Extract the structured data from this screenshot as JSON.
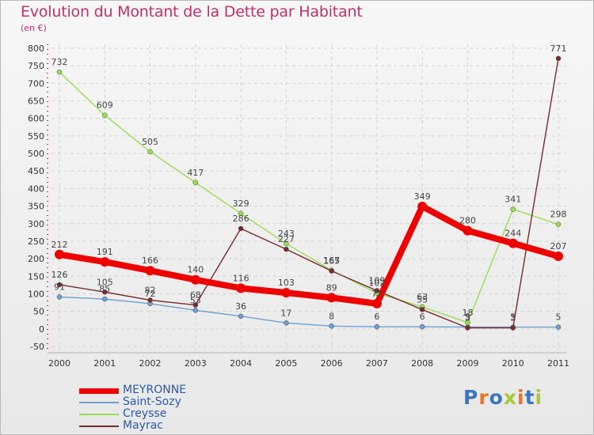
{
  "title": "Evolution du Montant de la Dette par Habitant",
  "subtitle": "(en €)",
  "logo": {
    "text": "Proxiti",
    "colors": [
      "#3a76c2",
      "#e8732b",
      "#3a76c2",
      "#a6c93a",
      "#e8732b",
      "#3a76c2",
      "#a6c93a"
    ]
  },
  "chart_data": {
    "type": "line",
    "categories": [
      "2000",
      "2001",
      "2002",
      "2003",
      "2004",
      "2005",
      "2006",
      "2007",
      "2008",
      "2009",
      "2010",
      "2011"
    ],
    "ylim": [
      -50,
      800
    ],
    "yticks": [
      -50,
      0,
      50,
      100,
      150,
      200,
      250,
      300,
      350,
      400,
      450,
      500,
      550,
      600,
      650,
      700,
      750,
      800
    ],
    "grid": true,
    "series": [
      {
        "name": "MEYRONNE",
        "color": "#ee0000",
        "values": [
          212,
          191,
          166,
          140,
          116,
          103,
          89,
          72,
          349,
          280,
          244,
          207
        ],
        "labels": [
          "212",
          "191",
          "166",
          "140",
          "116",
          "103",
          "89",
          "72",
          "349",
          "280",
          "244",
          "207"
        ]
      },
      {
        "name": "Saint-Sozy",
        "color": "#6f9fd0",
        "values": [
          91,
          85,
          72,
          53,
          36,
          17,
          8,
          6,
          6,
          5,
          5,
          5
        ],
        "labels": [
          "91",
          "85",
          "72",
          "53",
          "36",
          "17",
          "8",
          "6",
          "6",
          "5",
          "5",
          "5"
        ]
      },
      {
        "name": "Creysse",
        "color": "#99dd55",
        "values": [
          732,
          609,
          505,
          417,
          329,
          243,
          167,
          102,
          63,
          18,
          341,
          298
        ],
        "labels": [
          "732",
          "609",
          "505",
          "417",
          "329",
          "243",
          "167",
          "102",
          "63",
          "18",
          "341",
          "298"
        ]
      },
      {
        "name": "Mayrac",
        "color": "#7a2a2a",
        "values": [
          126,
          105,
          82,
          68,
          286,
          227,
          165,
          109,
          55,
          3,
          3,
          771
        ],
        "labels": [
          "126",
          "105",
          "82",
          "68",
          "286",
          "227",
          "165",
          "109",
          "55",
          "3",
          "3",
          "771"
        ]
      }
    ]
  }
}
